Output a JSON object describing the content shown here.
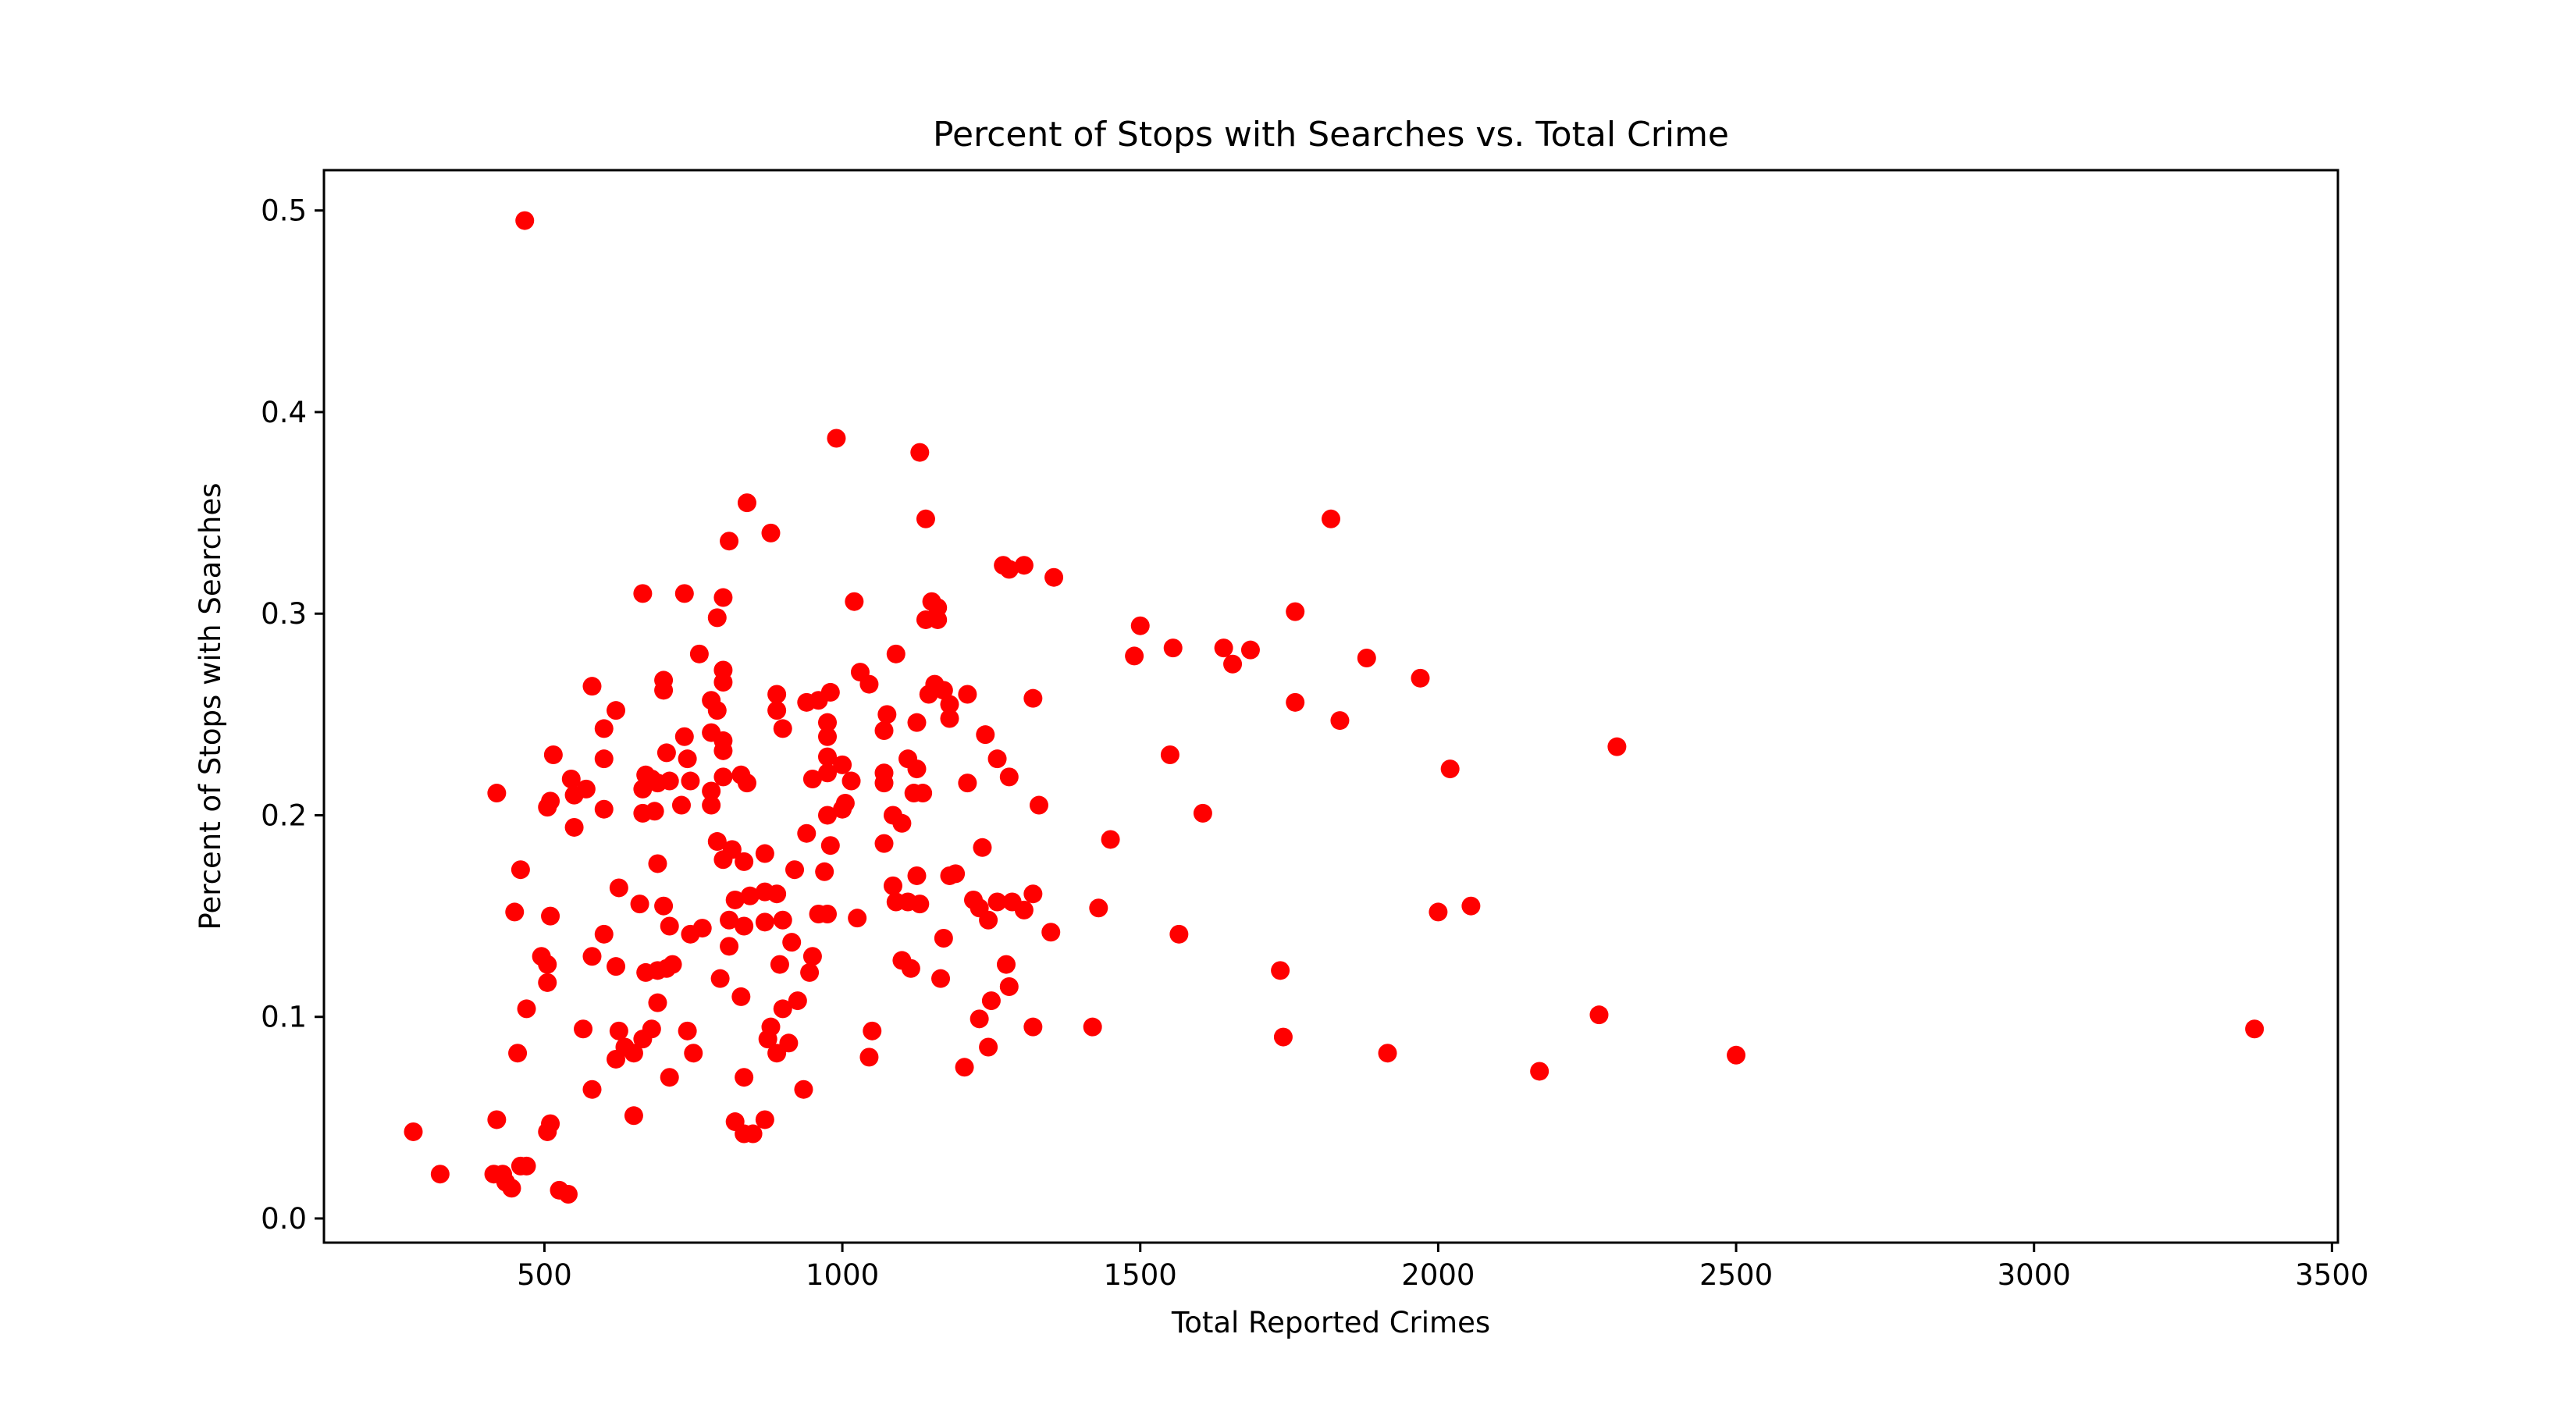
{
  "chart_data": {
    "type": "scatter",
    "title": "Percent of Stops with Searches vs. Total Crime",
    "xlabel": "Total Reported Crimes",
    "ylabel": "Percent of Stops with Searches",
    "xlim": [
      130,
      3510
    ],
    "ylim": [
      -0.012,
      0.52
    ],
    "xticks": [
      500,
      1000,
      1500,
      2000,
      2500,
      3000,
      3500
    ],
    "yticks": [
      0.0,
      0.1,
      0.2,
      0.3,
      0.4,
      0.5
    ],
    "xtick_labels": [
      "500",
      "1000",
      "1500",
      "2000",
      "2500",
      "3000",
      "3500"
    ],
    "ytick_labels": [
      "0.0",
      "0.1",
      "0.2",
      "0.3",
      "0.4",
      "0.5"
    ],
    "grid": false,
    "legend": "none",
    "marker_color": "#ff0000",
    "points": [
      [
        467,
        0.495
      ],
      [
        990,
        0.387
      ],
      [
        1130,
        0.38
      ],
      [
        840,
        0.355
      ],
      [
        1140,
        0.347
      ],
      [
        880,
        0.34
      ],
      [
        810,
        0.336
      ],
      [
        1820,
        0.347
      ],
      [
        1270,
        0.324
      ],
      [
        1305,
        0.324
      ],
      [
        1280,
        0.322
      ],
      [
        1355,
        0.318
      ],
      [
        665,
        0.31
      ],
      [
        735,
        0.31
      ],
      [
        800,
        0.308
      ],
      [
        1020,
        0.306
      ],
      [
        1150,
        0.306
      ],
      [
        1160,
        0.303
      ],
      [
        1760,
        0.301
      ],
      [
        1140,
        0.297
      ],
      [
        790,
        0.298
      ],
      [
        1160,
        0.297
      ],
      [
        1500,
        0.294
      ],
      [
        1555,
        0.283
      ],
      [
        1640,
        0.283
      ],
      [
        1685,
        0.282
      ],
      [
        1490,
        0.279
      ],
      [
        1880,
        0.278
      ],
      [
        1655,
        0.275
      ],
      [
        760,
        0.28
      ],
      [
        1090,
        0.28
      ],
      [
        800,
        0.272
      ],
      [
        1030,
        0.271
      ],
      [
        1970,
        0.268
      ],
      [
        700,
        0.267
      ],
      [
        800,
        0.266
      ],
      [
        1045,
        0.265
      ],
      [
        1155,
        0.265
      ],
      [
        580,
        0.264
      ],
      [
        700,
        0.262
      ],
      [
        890,
        0.26
      ],
      [
        980,
        0.261
      ],
      [
        1145,
        0.26
      ],
      [
        1170,
        0.262
      ],
      [
        1210,
        0.26
      ],
      [
        940,
        0.256
      ],
      [
        960,
        0.257
      ],
      [
        780,
        0.257
      ],
      [
        1320,
        0.258
      ],
      [
        1760,
        0.256
      ],
      [
        1180,
        0.255
      ],
      [
        620,
        0.252
      ],
      [
        790,
        0.252
      ],
      [
        890,
        0.252
      ],
      [
        1075,
        0.25
      ],
      [
        1180,
        0.248
      ],
      [
        1835,
        0.247
      ],
      [
        975,
        0.246
      ],
      [
        1125,
        0.246
      ],
      [
        900,
        0.243
      ],
      [
        600,
        0.243
      ],
      [
        780,
        0.241
      ],
      [
        1070,
        0.242
      ],
      [
        735,
        0.239
      ],
      [
        975,
        0.239
      ],
      [
        1240,
        0.24
      ],
      [
        800,
        0.237
      ],
      [
        2300,
        0.234
      ],
      [
        515,
        0.23
      ],
      [
        705,
        0.231
      ],
      [
        800,
        0.232
      ],
      [
        1550,
        0.23
      ],
      [
        740,
        0.228
      ],
      [
        975,
        0.229
      ],
      [
        1110,
        0.228
      ],
      [
        1260,
        0.228
      ],
      [
        600,
        0.228
      ],
      [
        1000,
        0.225
      ],
      [
        2020,
        0.223
      ],
      [
        1125,
        0.223
      ],
      [
        670,
        0.22
      ],
      [
        830,
        0.22
      ],
      [
        975,
        0.221
      ],
      [
        1070,
        0.221
      ],
      [
        680,
        0.218
      ],
      [
        710,
        0.217
      ],
      [
        745,
        0.217
      ],
      [
        800,
        0.219
      ],
      [
        840,
        0.216
      ],
      [
        950,
        0.218
      ],
      [
        1015,
        0.217
      ],
      [
        1280,
        0.219
      ],
      [
        545,
        0.218
      ],
      [
        570,
        0.213
      ],
      [
        690,
        0.216
      ],
      [
        665,
        0.213
      ],
      [
        780,
        0.212
      ],
      [
        1070,
        0.216
      ],
      [
        1120,
        0.211
      ],
      [
        1135,
        0.211
      ],
      [
        1210,
        0.216
      ],
      [
        420,
        0.211
      ],
      [
        550,
        0.21
      ],
      [
        510,
        0.207
      ],
      [
        505,
        0.204
      ],
      [
        730,
        0.205
      ],
      [
        780,
        0.205
      ],
      [
        1005,
        0.206
      ],
      [
        1000,
        0.203
      ],
      [
        1330,
        0.205
      ],
      [
        600,
        0.203
      ],
      [
        665,
        0.201
      ],
      [
        685,
        0.202
      ],
      [
        1605,
        0.201
      ],
      [
        1085,
        0.2
      ],
      [
        975,
        0.2
      ],
      [
        1100,
        0.196
      ],
      [
        550,
        0.194
      ],
      [
        940,
        0.191
      ],
      [
        1450,
        0.188
      ],
      [
        790,
        0.187
      ],
      [
        1070,
        0.186
      ],
      [
        1235,
        0.184
      ],
      [
        980,
        0.185
      ],
      [
        815,
        0.183
      ],
      [
        870,
        0.181
      ],
      [
        800,
        0.178
      ],
      [
        835,
        0.177
      ],
      [
        920,
        0.173
      ],
      [
        970,
        0.172
      ],
      [
        1180,
        0.17
      ],
      [
        1190,
        0.171
      ],
      [
        690,
        0.176
      ],
      [
        460,
        0.173
      ],
      [
        1125,
        0.17
      ],
      [
        625,
        0.164
      ],
      [
        1085,
        0.165
      ],
      [
        870,
        0.162
      ],
      [
        890,
        0.161
      ],
      [
        1320,
        0.161
      ],
      [
        845,
        0.16
      ],
      [
        820,
        0.158
      ],
      [
        1090,
        0.157
      ],
      [
        1110,
        0.157
      ],
      [
        1220,
        0.158
      ],
      [
        1260,
        0.157
      ],
      [
        1285,
        0.157
      ],
      [
        660,
        0.156
      ],
      [
        700,
        0.155
      ],
      [
        1130,
        0.156
      ],
      [
        1230,
        0.154
      ],
      [
        1305,
        0.153
      ],
      [
        1430,
        0.154
      ],
      [
        2055,
        0.155
      ],
      [
        450,
        0.152
      ],
      [
        510,
        0.15
      ],
      [
        1025,
        0.149
      ],
      [
        1245,
        0.148
      ],
      [
        2000,
        0.152
      ],
      [
        810,
        0.148
      ],
      [
        870,
        0.147
      ],
      [
        900,
        0.148
      ],
      [
        835,
        0.145
      ],
      [
        960,
        0.151
      ],
      [
        975,
        0.151
      ],
      [
        710,
        0.145
      ],
      [
        765,
        0.144
      ],
      [
        745,
        0.141
      ],
      [
        600,
        0.141
      ],
      [
        1350,
        0.142
      ],
      [
        1565,
        0.141
      ],
      [
        1170,
        0.139
      ],
      [
        810,
        0.135
      ],
      [
        915,
        0.137
      ],
      [
        580,
        0.13
      ],
      [
        495,
        0.13
      ],
      [
        950,
        0.13
      ],
      [
        1100,
        0.128
      ],
      [
        1275,
        0.126
      ],
      [
        505,
        0.126
      ],
      [
        620,
        0.125
      ],
      [
        670,
        0.122
      ],
      [
        690,
        0.123
      ],
      [
        705,
        0.124
      ],
      [
        715,
        0.126
      ],
      [
        895,
        0.126
      ],
      [
        945,
        0.122
      ],
      [
        1115,
        0.124
      ],
      [
        1735,
        0.123
      ],
      [
        795,
        0.119
      ],
      [
        1165,
        0.119
      ],
      [
        505,
        0.117
      ],
      [
        1280,
        0.115
      ],
      [
        1250,
        0.108
      ],
      [
        830,
        0.11
      ],
      [
        900,
        0.104
      ],
      [
        925,
        0.108
      ],
      [
        690,
        0.107
      ],
      [
        470,
        0.104
      ],
      [
        2270,
        0.101
      ],
      [
        1230,
        0.099
      ],
      [
        565,
        0.094
      ],
      [
        625,
        0.093
      ],
      [
        680,
        0.094
      ],
      [
        740,
        0.093
      ],
      [
        880,
        0.095
      ],
      [
        1050,
        0.093
      ],
      [
        1320,
        0.095
      ],
      [
        1420,
        0.095
      ],
      [
        3370,
        0.094
      ],
      [
        665,
        0.089
      ],
      [
        875,
        0.089
      ],
      [
        910,
        0.087
      ],
      [
        1740,
        0.09
      ],
      [
        1245,
        0.085
      ],
      [
        635,
        0.085
      ],
      [
        650,
        0.082
      ],
      [
        750,
        0.082
      ],
      [
        890,
        0.082
      ],
      [
        455,
        0.082
      ],
      [
        1045,
        0.08
      ],
      [
        1915,
        0.082
      ],
      [
        2500,
        0.081
      ],
      [
        620,
        0.079
      ],
      [
        1205,
        0.075
      ],
      [
        2170,
        0.073
      ],
      [
        710,
        0.07
      ],
      [
        835,
        0.07
      ],
      [
        580,
        0.064
      ],
      [
        935,
        0.064
      ],
      [
        650,
        0.051
      ],
      [
        420,
        0.049
      ],
      [
        820,
        0.048
      ],
      [
        870,
        0.049
      ],
      [
        510,
        0.047
      ],
      [
        835,
        0.042
      ],
      [
        850,
        0.042
      ],
      [
        505,
        0.043
      ],
      [
        280,
        0.043
      ],
      [
        470,
        0.026
      ],
      [
        460,
        0.026
      ],
      [
        325,
        0.022
      ],
      [
        415,
        0.022
      ],
      [
        430,
        0.022
      ],
      [
        435,
        0.018
      ],
      [
        445,
        0.015
      ],
      [
        525,
        0.014
      ],
      [
        540,
        0.012
      ]
    ]
  }
}
